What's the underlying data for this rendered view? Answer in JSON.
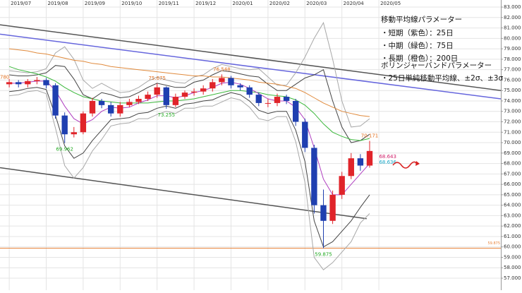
{
  "chart_data": {
    "type": "candlestick",
    "up_color": "#e0242a",
    "down_color": "#1f3fb0",
    "x": [
      0,
      0.25,
      0.5,
      0.75,
      1,
      1.25,
      1.5,
      1.75,
      2,
      2.25,
      2.5,
      2.75,
      3,
      3.25,
      3.5,
      3.75,
      4,
      4.25,
      4.5,
      4.75,
      5,
      5.25,
      5.5,
      5.75,
      6,
      6.25,
      6.5,
      6.75,
      7,
      7.25,
      7.5,
      7.75,
      8,
      8.25,
      8.5,
      8.75,
      9,
      9.25,
      9.5,
      9.75
    ],
    "open": [
      75.6,
      75.8,
      75.6,
      75.9,
      76.0,
      75.5,
      72.6,
      70.8,
      71.0,
      72.8,
      74.0,
      73.6,
      72.8,
      73.6,
      73.9,
      74.2,
      74.6,
      75.3,
      73.6,
      74.4,
      74.8,
      74.9,
      75.2,
      75.8,
      76.2,
      75.5,
      75.3,
      74.6,
      73.8,
      73.8,
      74.4,
      74.0,
      72.0,
      69.5,
      64.0,
      62.5,
      65.0,
      66.8,
      68.5,
      67.8
    ],
    "high": [
      76.1,
      76.0,
      76.1,
      76.3,
      76.2,
      75.7,
      72.9,
      71.5,
      73.0,
      74.3,
      74.2,
      73.9,
      73.9,
      74.2,
      74.5,
      74.9,
      75.675,
      75.4,
      74.7,
      75.0,
      75.2,
      75.5,
      76.1,
      76.548,
      76.4,
      75.7,
      75.5,
      74.8,
      74.2,
      74.7,
      74.6,
      74.2,
      72.3,
      69.8,
      65.5,
      65.4,
      67.2,
      69.0,
      68.9,
      70.171
    ],
    "low": [
      75.3,
      75.3,
      75.3,
      75.6,
      75.2,
      72.3,
      69.962,
      70.5,
      70.8,
      72.5,
      73.3,
      72.5,
      72.5,
      73.4,
      73.7,
      74.0,
      74.3,
      73.255,
      73.4,
      74.2,
      74.5,
      74.6,
      74.9,
      75.5,
      75.2,
      75.0,
      74.3,
      73.5,
      73.4,
      73.5,
      73.7,
      71.6,
      69.1,
      63.2,
      59.875,
      62.2,
      64.6,
      66.5,
      67.3,
      67.6
    ],
    "close": [
      75.8,
      75.6,
      75.9,
      76.0,
      75.5,
      72.6,
      70.8,
      71.0,
      72.8,
      74.0,
      73.6,
      72.8,
      73.6,
      73.9,
      74.2,
      74.6,
      75.3,
      73.6,
      74.4,
      74.8,
      74.9,
      75.2,
      75.8,
      76.2,
      75.5,
      75.3,
      74.6,
      73.8,
      73.8,
      74.4,
      74.0,
      72.0,
      69.5,
      64.0,
      62.5,
      65.0,
      66.8,
      68.5,
      67.8,
      69.2
    ],
    "lines": [
      {
        "color": "#a8a8a8",
        "values": [
          76.9,
          76.8,
          76.7,
          76.8,
          77.1,
          78.6,
          79.2,
          78.0,
          76.0,
          75.2,
          75.7,
          75.2,
          74.8,
          74.9,
          75.3,
          75.9,
          76.3,
          76.0,
          75.8,
          75.7,
          76.3,
          76.5,
          77.1,
          77.5,
          77.3,
          77.1,
          77.0,
          77.1,
          76.3,
          75.5,
          75.5,
          76.7,
          78.2,
          80.0,
          81.5,
          78.0,
          74.0,
          71.5,
          71.6,
          72.3
        ]
      },
      {
        "color": "#a8a8a8",
        "values": [
          74.5,
          74.6,
          74.9,
          75.0,
          74.7,
          71.4,
          67.8,
          66.6,
          67.6,
          69.2,
          70.3,
          71.6,
          71.8,
          71.9,
          72.3,
          72.3,
          72.7,
          73.0,
          72.8,
          73.3,
          73.3,
          73.5,
          73.5,
          73.9,
          74.3,
          74.1,
          73.4,
          72.3,
          72.1,
          72.5,
          72.5,
          70.1,
          66.2,
          59.0,
          57.8,
          58.5,
          59.5,
          60.5,
          62.3,
          63.2
        ]
      },
      {
        "color": "#444444",
        "values": [
          76.5,
          76.4,
          76.4,
          76.5,
          76.7,
          77.4,
          77.3,
          76.1,
          74.6,
          74.2,
          74.8,
          74.6,
          74.3,
          74.4,
          74.8,
          75.3,
          75.7,
          75.5,
          75.3,
          75.3,
          75.8,
          76.0,
          76.5,
          76.9,
          76.8,
          76.6,
          76.4,
          76.3,
          75.6,
          75.0,
          75.0,
          75.6,
          76.2,
          76.5,
          77.0,
          74.0,
          71.5,
          70.0,
          70.2,
          70.8
        ]
      },
      {
        "color": "#444444",
        "values": [
          74.9,
          75.0,
          75.2,
          75.3,
          75.1,
          72.6,
          69.7,
          68.5,
          69.0,
          70.2,
          71.2,
          72.2,
          72.3,
          72.4,
          72.8,
          72.9,
          73.3,
          73.5,
          73.3,
          73.7,
          73.8,
          74.0,
          74.1,
          74.5,
          74.8,
          74.6,
          74.0,
          73.1,
          72.8,
          73.0,
          73.0,
          71.2,
          68.2,
          62.5,
          60.0,
          60.5,
          61.5,
          62.5,
          63.8,
          65.0
        ]
      },
      {
        "color": "#e08a3c",
        "values": [
          79.0,
          78.9,
          78.8,
          78.6,
          78.5,
          78.3,
          78.1,
          77.9,
          77.8,
          77.6,
          77.5,
          77.3,
          77.2,
          77.1,
          77.0,
          76.9,
          76.8,
          76.7,
          76.6,
          76.5,
          76.4,
          76.4,
          76.3,
          76.3,
          76.2,
          76.1,
          76.0,
          75.8,
          75.7,
          75.6,
          75.4,
          75.2,
          74.8,
          74.3,
          73.8,
          73.4,
          73.0,
          72.8,
          72.6,
          72.5
        ]
      },
      {
        "color": "#3cb83c",
        "values": [
          77.3,
          77.0,
          76.8,
          76.6,
          76.3,
          75.9,
          75.3,
          74.8,
          74.4,
          74.2,
          74.0,
          73.9,
          73.8,
          73.8,
          73.8,
          73.8,
          73.9,
          74.0,
          74.0,
          74.1,
          74.2,
          74.4,
          74.6,
          74.8,
          75.0,
          75.0,
          74.9,
          74.8,
          74.6,
          74.5,
          74.4,
          74.1,
          73.6,
          72.8,
          71.8,
          71.0,
          70.6,
          70.3,
          70.2,
          70.4
        ]
      },
      {
        "color": "#b040c0",
        "values": [
          75.7,
          75.7,
          75.8,
          75.9,
          75.9,
          75.0,
          73.5,
          72.3,
          71.8,
          72.2,
          73.0,
          73.4,
          73.3,
          73.4,
          73.8,
          74.1,
          74.5,
          74.5,
          74.3,
          74.5,
          74.8,
          75.0,
          75.3,
          75.7,
          75.8,
          75.6,
          75.2,
          74.7,
          74.2,
          74.0,
          74.0,
          73.4,
          72.2,
          69.5,
          66.5,
          65.0,
          65.0,
          66.0,
          67.0,
          68.0
        ]
      }
    ],
    "trendlines": [
      {
        "color": "#555555",
        "x": [
          -0.25,
          13.3
        ],
        "y": [
          81.3,
          75.0
        ]
      },
      {
        "color": "#6666dd",
        "x": [
          -0.25,
          13.3
        ],
        "y": [
          80.4,
          74.2
        ]
      },
      {
        "color": "#555555",
        "x": [
          -0.25,
          9.67
        ],
        "y": [
          67.6,
          62.7
        ]
      }
    ],
    "hline": {
      "value": 59.875,
      "color": "#e8843c"
    },
    "annotations": [
      {
        "label": "780",
        "value": 75.78,
        "x": -0.25,
        "color": "#e07020"
      },
      {
        "label": "69.962",
        "value": 69.962,
        "x": 1.5,
        "color": "#22aa22"
      },
      {
        "label": "75.675",
        "value": 75.675,
        "x": 4,
        "color": "#e07020"
      },
      {
        "label": "73.255",
        "value": 73.255,
        "x": 4.25,
        "color": "#22aa22"
      },
      {
        "label": "76.548",
        "value": 76.548,
        "x": 5.75,
        "color": "#e07020"
      },
      {
        "label": "59.875",
        "value": 59.875,
        "x": 8.5,
        "color": "#22aa22"
      },
      {
        "label": "70.171",
        "value": 70.171,
        "x": 9.75,
        "color": "#e07020"
      },
      {
        "label": "68.643",
        "value": 68.643,
        "x": 9.95,
        "color": "#d0206a"
      },
      {
        "label": "68.636",
        "value": 68.636,
        "x": 9.95,
        "color": "#1aa8c8"
      },
      {
        "label": "59.875",
        "value": 59.875,
        "x": 12.9,
        "color": "#e8843c"
      }
    ],
    "xlim": [
      -0.25,
      13.3
    ],
    "xticks": [
      {
        "value": 0,
        "label": "2019/07"
      },
      {
        "value": 1,
        "label": "2019/08"
      },
      {
        "value": 2,
        "label": "2019/09"
      },
      {
        "value": 3,
        "label": "2019/10"
      },
      {
        "value": 4,
        "label": "2019/11"
      },
      {
        "value": 5,
        "label": "2019/12"
      },
      {
        "value": 6,
        "label": "2020/01"
      },
      {
        "value": 7,
        "label": "2020/02"
      },
      {
        "value": 8,
        "label": "2020/03"
      },
      {
        "value": 9,
        "label": "2020/04"
      },
      {
        "value": 10,
        "label": "2020/05"
      }
    ],
    "ylim": [
      55.85,
      83.68
    ],
    "yticks": [
      {
        "value": 57,
        "label": "57.000"
      },
      {
        "value": 58,
        "label": "58.000"
      },
      {
        "value": 59,
        "label": "59.000"
      },
      {
        "value": 60,
        "label": "60.000"
      },
      {
        "value": 61,
        "label": "61.000"
      },
      {
        "value": 62,
        "label": "62.000"
      },
      {
        "value": 63,
        "label": "63.000"
      },
      {
        "value": 64,
        "label": "64.000"
      },
      {
        "value": 65,
        "label": "65.000"
      },
      {
        "value": 66,
        "label": "66.000"
      },
      {
        "value": 67,
        "label": "67.000"
      },
      {
        "value": 68,
        "label": "68.000"
      },
      {
        "value": 69,
        "label": "69.000"
      },
      {
        "value": 70,
        "label": "70.000"
      },
      {
        "value": 71,
        "label": "71.000"
      },
      {
        "value": 72,
        "label": "72.000"
      },
      {
        "value": 73,
        "label": "73.000"
      },
      {
        "value": 74,
        "label": "74.000"
      },
      {
        "value": 75,
        "label": "75.000"
      },
      {
        "value": 76,
        "label": "76.000"
      },
      {
        "value": 77,
        "label": "77.000"
      },
      {
        "value": 78,
        "label": "78.000"
      },
      {
        "value": 79,
        "label": "79.000"
      },
      {
        "value": 80,
        "label": "80.000"
      },
      {
        "value": 81,
        "label": "81.000"
      },
      {
        "value": 82,
        "label": "82.000"
      },
      {
        "value": 83,
        "label": "83.000"
      }
    ],
    "grid": true,
    "legend_box": [
      "移動平均線パラメーター",
      "・短期（紫色）：25日",
      "・中期（緑色）：75日",
      "・長期（橙色）：200日",
      "ボリンジャーバンドパラメーター",
      "・25日単純移動平均線、±2σ、±3σ"
    ]
  }
}
